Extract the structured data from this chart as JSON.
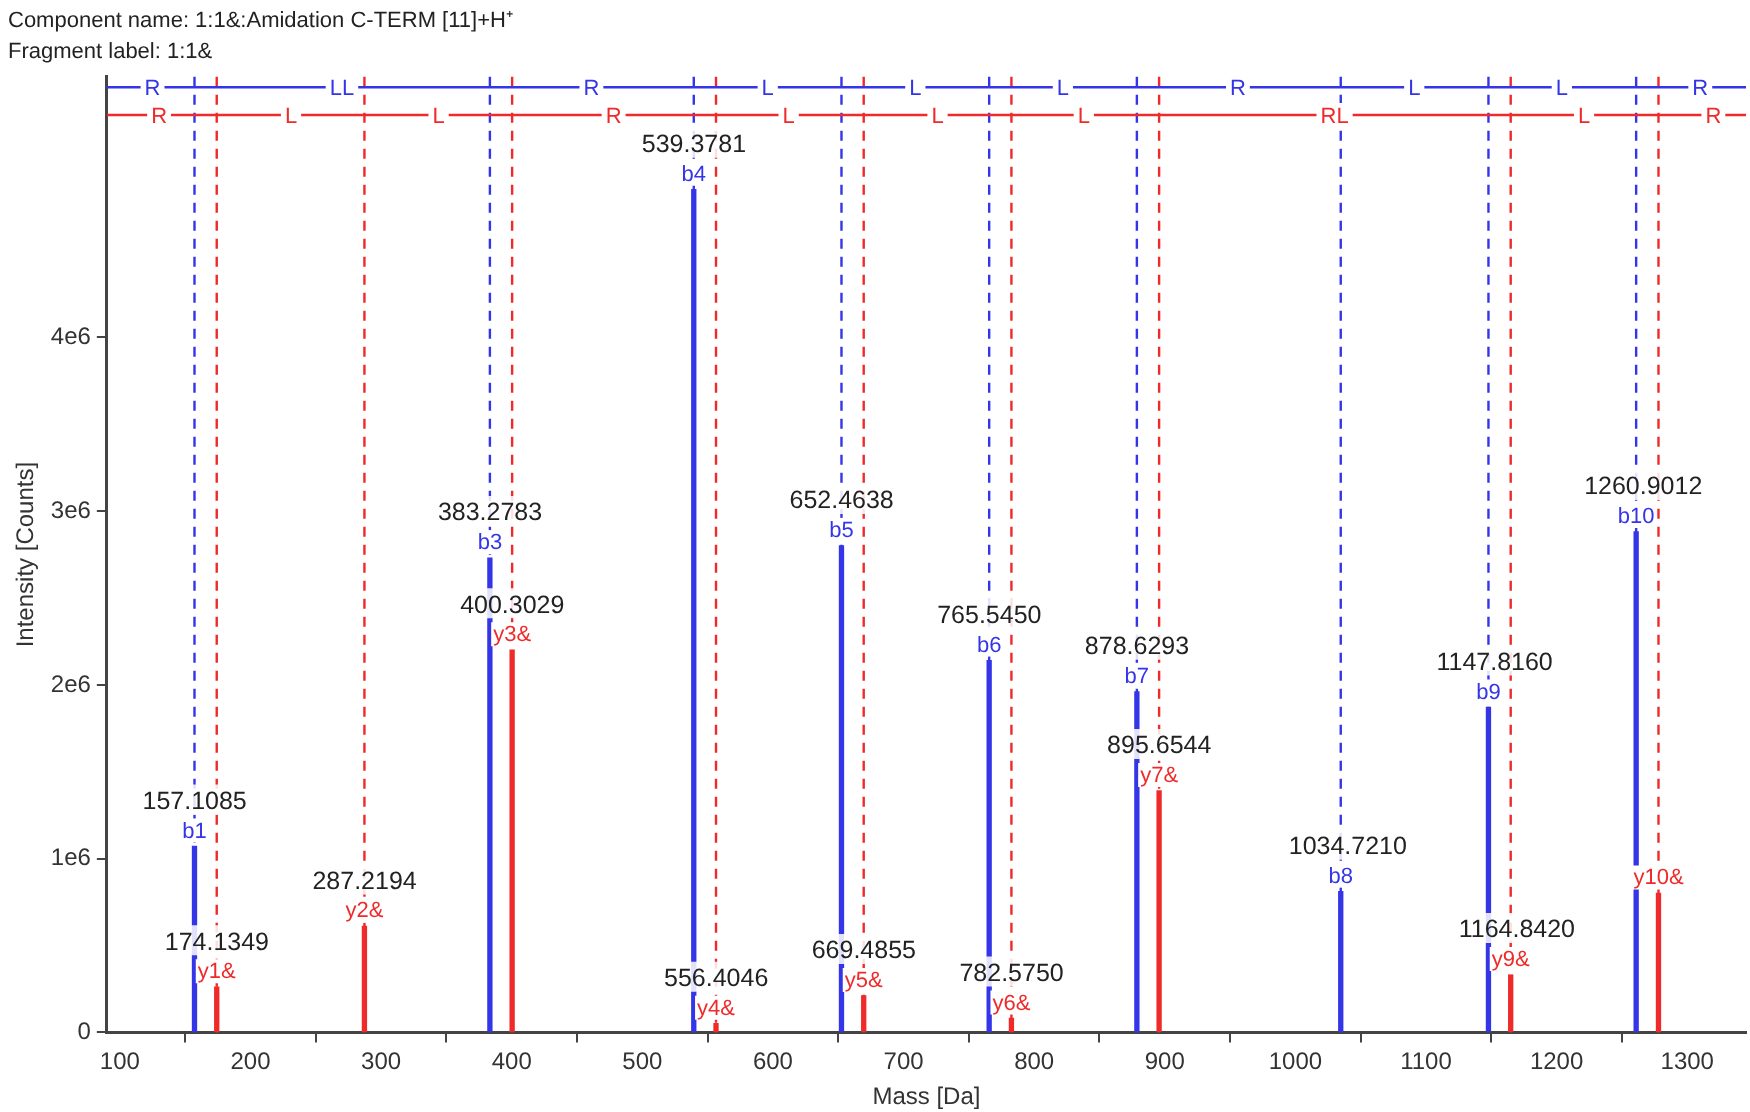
{
  "chart_data": {
    "type": "bar",
    "title": "Component name: 1:1&:Amidation C-TERM [11]+H⁺",
    "subtitle": "Fragment label: 1:1&",
    "xlabel": "Mass [Da]",
    "ylabel": "Intensity [Counts]",
    "xlim": [
      90,
      1345
    ],
    "xticks": [
      100,
      200,
      300,
      400,
      500,
      600,
      700,
      800,
      900,
      1000,
      1100,
      1200,
      1300
    ],
    "ylim": [
      0,
      5500000
    ],
    "yticks": [
      0,
      {
        "value": 1000000,
        "label": "1e6"
      },
      {
        "value": 2000000,
        "label": "2e6"
      },
      {
        "value": 3000000,
        "label": "3e6"
      },
      {
        "value": 4000000,
        "label": "4e6"
      }
    ],
    "grid": false,
    "legend": false,
    "series": [
      {
        "color": "#3535e8",
        "x": [
          157.1085,
          383.2783,
          539.3781,
          652.4638,
          765.545,
          878.6293,
          1034.721,
          1147.816,
          1260.9012
        ],
        "values": [
          1070000,
          2730000,
          4850000,
          2800000,
          2140000,
          1960000,
          810000,
          1870000,
          2880000
        ],
        "value_labels": [
          "b1",
          "b3",
          "b4",
          "b5",
          "b6",
          "b7",
          "b8",
          "b9",
          "b10"
        ]
      },
      {
        "color": "#ee2a2a",
        "x": [
          174.1349,
          287.2194,
          400.3029,
          556.4046,
          669.4855,
          782.575,
          895.6544,
          1164.842,
          1278
        ],
        "values": [
          260000,
          610000,
          2200000,
          50000,
          210000,
          80000,
          1390000,
          330000,
          800000
        ],
        "value_labels": [
          "y1&",
          "y2&",
          "y3&",
          "y4&",
          "y5&",
          "y6&",
          "y7&",
          "y9&",
          "y10&"
        ]
      },
      {
        "type": "line",
        "color": "#3535e8",
        "x": [
          90,
          125,
          157.1085,
          270,
          383.2783,
          461,
          539.3781,
          596,
          652.4638,
          709,
          765.545,
          822,
          878.6293,
          956,
          1034.721,
          1091,
          1147.816,
          1204,
          1260.9012,
          1310,
          1345
        ],
        "values": [
          5440000,
          5440000,
          5440000,
          5440000,
          5440000,
          5440000,
          5440000,
          5440000,
          5440000,
          5440000,
          5440000,
          5440000,
          5440000,
          5440000,
          5440000,
          5440000,
          5440000,
          5440000,
          5440000,
          5440000,
          5440000
        ],
        "value_labels": [
          null,
          "R",
          null,
          "LL",
          null,
          "R",
          null,
          "L",
          null,
          "L",
          null,
          "L",
          null,
          "R",
          null,
          "L",
          null,
          "L",
          null,
          "R",
          null
        ]
      },
      {
        "type": "line",
        "color": "#ee2a2a",
        "x": [
          90,
          130,
          174.1349,
          231,
          287.2194,
          344,
          400.3029,
          478,
          556.4046,
          612,
          669.4855,
          726,
          782.575,
          838,
          895.6544,
          1030,
          1164.842,
          1221,
          1278,
          1320,
          1345
        ],
        "values": [
          5280000,
          5280000,
          5280000,
          5280000,
          5280000,
          5280000,
          5280000,
          5280000,
          5280000,
          5280000,
          5280000,
          5280000,
          5280000,
          5280000,
          5280000,
          5280000,
          5280000,
          5280000,
          5280000,
          5280000,
          5280000
        ],
        "value_labels": [
          null,
          "R",
          null,
          "L",
          null,
          "L",
          null,
          "R",
          null,
          "L",
          null,
          "L",
          null,
          "L",
          null,
          "RL",
          null,
          "L",
          null,
          "R",
          null
        ]
      }
    ],
    "ref_lines": [
      {
        "axis": "x",
        "value": 157.1085,
        "color": "#3535e8",
        "line_style": "dashed"
      },
      {
        "axis": "x",
        "value": 383.2783,
        "color": "#3535e8",
        "line_style": "dashed"
      },
      {
        "axis": "x",
        "value": 539.3781,
        "color": "#3535e8",
        "line_style": "dashed"
      },
      {
        "axis": "x",
        "value": 652.4638,
        "color": "#3535e8",
        "line_style": "dashed"
      },
      {
        "axis": "x",
        "value": 765.545,
        "color": "#3535e8",
        "line_style": "dashed"
      },
      {
        "axis": "x",
        "value": 878.6293,
        "color": "#3535e8",
        "line_style": "dashed"
      },
      {
        "axis": "x",
        "value": 1034.721,
        "color": "#3535e8",
        "line_style": "dashed"
      },
      {
        "axis": "x",
        "value": 1147.816,
        "color": "#3535e8",
        "line_style": "dashed"
      },
      {
        "axis": "x",
        "value": 1260.9012,
        "color": "#3535e8",
        "line_style": "dashed"
      },
      {
        "axis": "x",
        "value": 174.1349,
        "color": "#ee2a2a",
        "line_style": "dashed"
      },
      {
        "axis": "x",
        "value": 287.2194,
        "color": "#ee2a2a",
        "line_style": "dashed"
      },
      {
        "axis": "x",
        "value": 400.3029,
        "color": "#ee2a2a",
        "line_style": "dashed"
      },
      {
        "axis": "x",
        "value": 556.4046,
        "color": "#ee2a2a",
        "line_style": "dashed"
      },
      {
        "axis": "x",
        "value": 669.4855,
        "color": "#ee2a2a",
        "line_style": "dashed"
      },
      {
        "axis": "x",
        "value": 782.575,
        "color": "#ee2a2a",
        "line_style": "dashed"
      },
      {
        "axis": "x",
        "value": 895.6544,
        "color": "#ee2a2a",
        "line_style": "dashed"
      },
      {
        "axis": "x",
        "value": 1164.842,
        "color": "#ee2a2a",
        "line_style": "dashed"
      },
      {
        "axis": "x",
        "value": 1278,
        "color": "#ee2a2a",
        "line_style": "dashed"
      }
    ],
    "annotations": [
      {
        "text": "157.1085",
        "x": 157.1085,
        "y": 1070000
      },
      {
        "text": "383.2783",
        "x": 383.2783,
        "y": 2730000
      },
      {
        "text": "539.3781",
        "x": 539.3781,
        "y": 4850000
      },
      {
        "text": "652.4638",
        "x": 652.4638,
        "y": 2800000
      },
      {
        "text": "765.5450",
        "x": 765.545,
        "y": 2140000
      },
      {
        "text": "878.6293",
        "x": 878.6293,
        "y": 1960000
      },
      {
        "text": "1034.7210",
        "x": 1034.721,
        "y": 810000
      },
      {
        "text": "1147.8160",
        "x": 1147.816,
        "y": 1870000
      },
      {
        "text": "1260.9012",
        "x": 1260.9012,
        "y": 2880000
      },
      {
        "text": "174.1349",
        "x": 174.1349,
        "y": 260000
      },
      {
        "text": "287.2194",
        "x": 287.2194,
        "y": 610000
      },
      {
        "text": "400.3029",
        "x": 400.3029,
        "y": 2200000
      },
      {
        "text": "556.4046",
        "x": 556.4046,
        "y": 50000
      },
      {
        "text": "669.4855",
        "x": 669.4855,
        "y": 210000
      },
      {
        "text": "782.5750",
        "x": 782.575,
        "y": 80000
      },
      {
        "text": "895.6544",
        "x": 895.6544,
        "y": 1390000
      },
      {
        "text": "1164.8420",
        "x": 1164.842,
        "y": 330000
      }
    ]
  }
}
